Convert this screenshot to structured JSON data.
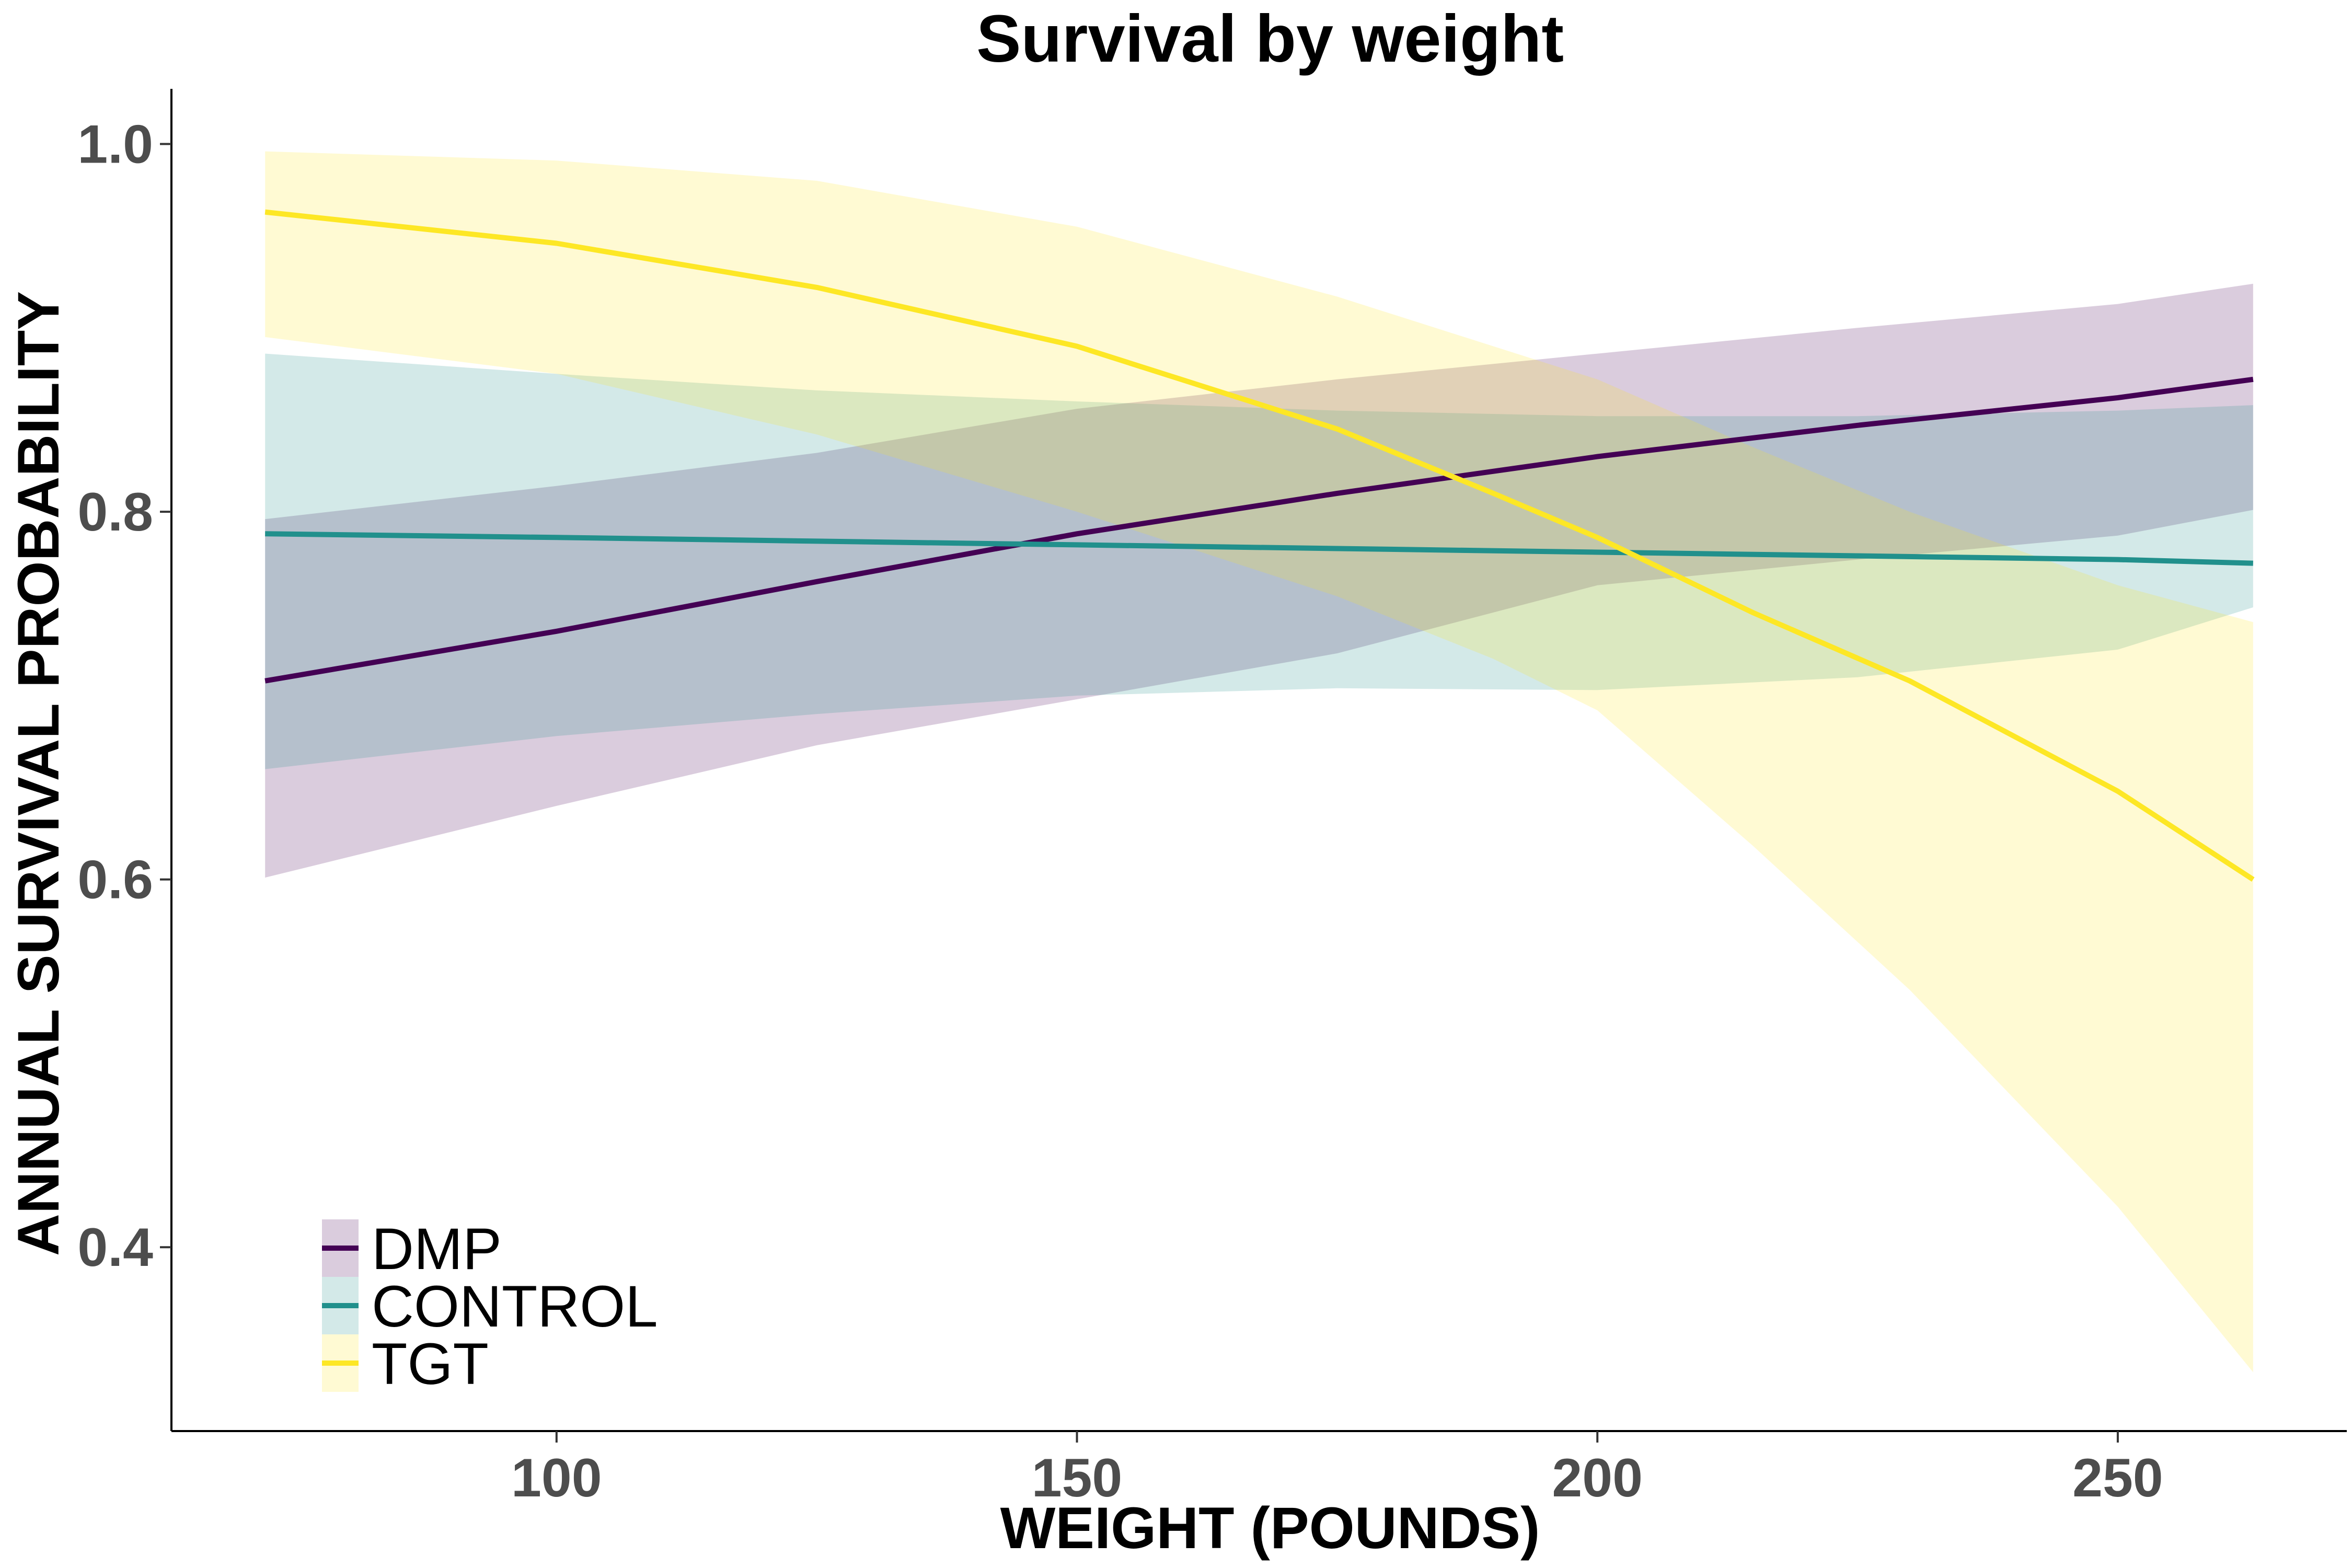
{
  "chart_data": {
    "type": "line",
    "title": "Survival by weight",
    "xlabel": "WEIGHT (POUNDS)",
    "ylabel": "ANNUAL SURVIVAL PROBABILITY",
    "xlim": [
      63,
      272
    ],
    "ylim": [
      0.3,
      1.03
    ],
    "x_ticks": [
      100,
      150,
      200,
      250
    ],
    "y_ticks": [
      0.4,
      0.6,
      0.8,
      1.0
    ],
    "x_tick_labels": [
      "100",
      "150",
      "200",
      "250"
    ],
    "y_tick_labels": [
      "0.4",
      "0.6",
      "0.8",
      "1.0"
    ],
    "grid": false,
    "legend_position": "bottom-left",
    "series": [
      {
        "name": "DMP",
        "color": "#440154",
        "fill_color": "#d9c5db",
        "x": [
          72,
          100,
          125,
          150,
          175,
          200,
          225,
          250,
          263
        ],
        "y": [
          0.708,
          0.735,
          0.762,
          0.788,
          0.81,
          0.83,
          0.847,
          0.862,
          0.872
        ],
        "lower": [
          0.601,
          0.64,
          0.673,
          0.698,
          0.723,
          0.76,
          0.774,
          0.787,
          0.801
        ],
        "upper": [
          0.796,
          0.814,
          0.832,
          0.856,
          0.872,
          0.886,
          0.9,
          0.913,
          0.924
        ]
      },
      {
        "name": "CONTROL",
        "color": "#21908c",
        "fill_color": "#d3e9e8",
        "x": [
          72,
          100,
          125,
          150,
          175,
          200,
          225,
          250,
          263
        ],
        "y": [
          0.788,
          0.786,
          0.784,
          0.782,
          0.78,
          0.778,
          0.776,
          0.774,
          0.772
        ],
        "lower": [
          0.66,
          0.678,
          0.69,
          0.7,
          0.704,
          0.703,
          0.71,
          0.725,
          0.748
        ],
        "upper": [
          0.886,
          0.875,
          0.866,
          0.86,
          0.855,
          0.852,
          0.852,
          0.855,
          0.858
        ]
      },
      {
        "name": "TGT",
        "color": "#fde725",
        "fill_color": "#fff9d3",
        "x": [
          72,
          100,
          125,
          150,
          175,
          190,
          200,
          215,
          230,
          250,
          263
        ],
        "y": [
          0.963,
          0.946,
          0.922,
          0.89,
          0.845,
          0.81,
          0.786,
          0.745,
          0.708,
          0.648,
          0.6
        ],
        "lower": [
          0.895,
          0.875,
          0.842,
          0.8,
          0.754,
          0.72,
          0.692,
          0.618,
          0.54,
          0.422,
          0.332
        ],
        "upper": [
          0.996,
          0.991,
          0.98,
          0.955,
          0.917,
          0.89,
          0.872,
          0.835,
          0.8,
          0.76,
          0.74
        ]
      }
    ]
  }
}
